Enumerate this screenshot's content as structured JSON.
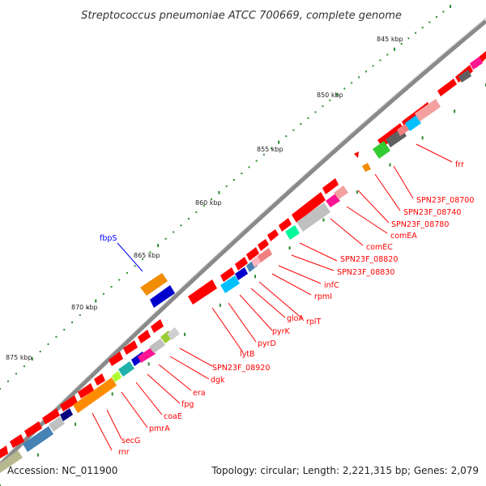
{
  "title": "Streptococcus pneumoniae ATCC 700669, complete genome",
  "footer": {
    "accession": "Accession: NC_011900",
    "summary": "Topology: circular; Length: 2,221,315 bp; Genes: 2,079"
  },
  "colors": {
    "backbone": "#8a8a8a",
    "forward_gene": "#ff0000",
    "tick_dot": "#2e8b2e",
    "label_red": "#ff0000",
    "label_blue": "#0000ff"
  },
  "ticks": [
    "845 kbp",
    "850 kbp",
    "855 kbp",
    "860 kbp",
    "865 kbp",
    "870 kbp",
    "875 kbp"
  ],
  "labels_red": [
    "frr",
    "SPN23F_08700",
    "SPN23F_08740",
    "SPN23F_08780",
    "comEA",
    "comEC",
    "SPN23F_08820",
    "SPN23F_08830",
    "infC",
    "rpmI",
    "rplT",
    "gloA",
    "pyrK",
    "pyrD",
    "lytB",
    "SPN23F_08920",
    "dgk",
    "era",
    "fpg",
    "coaE",
    "pmrA",
    "secG",
    "rnr"
  ],
  "labels_blue": [
    "fbpS"
  ]
}
